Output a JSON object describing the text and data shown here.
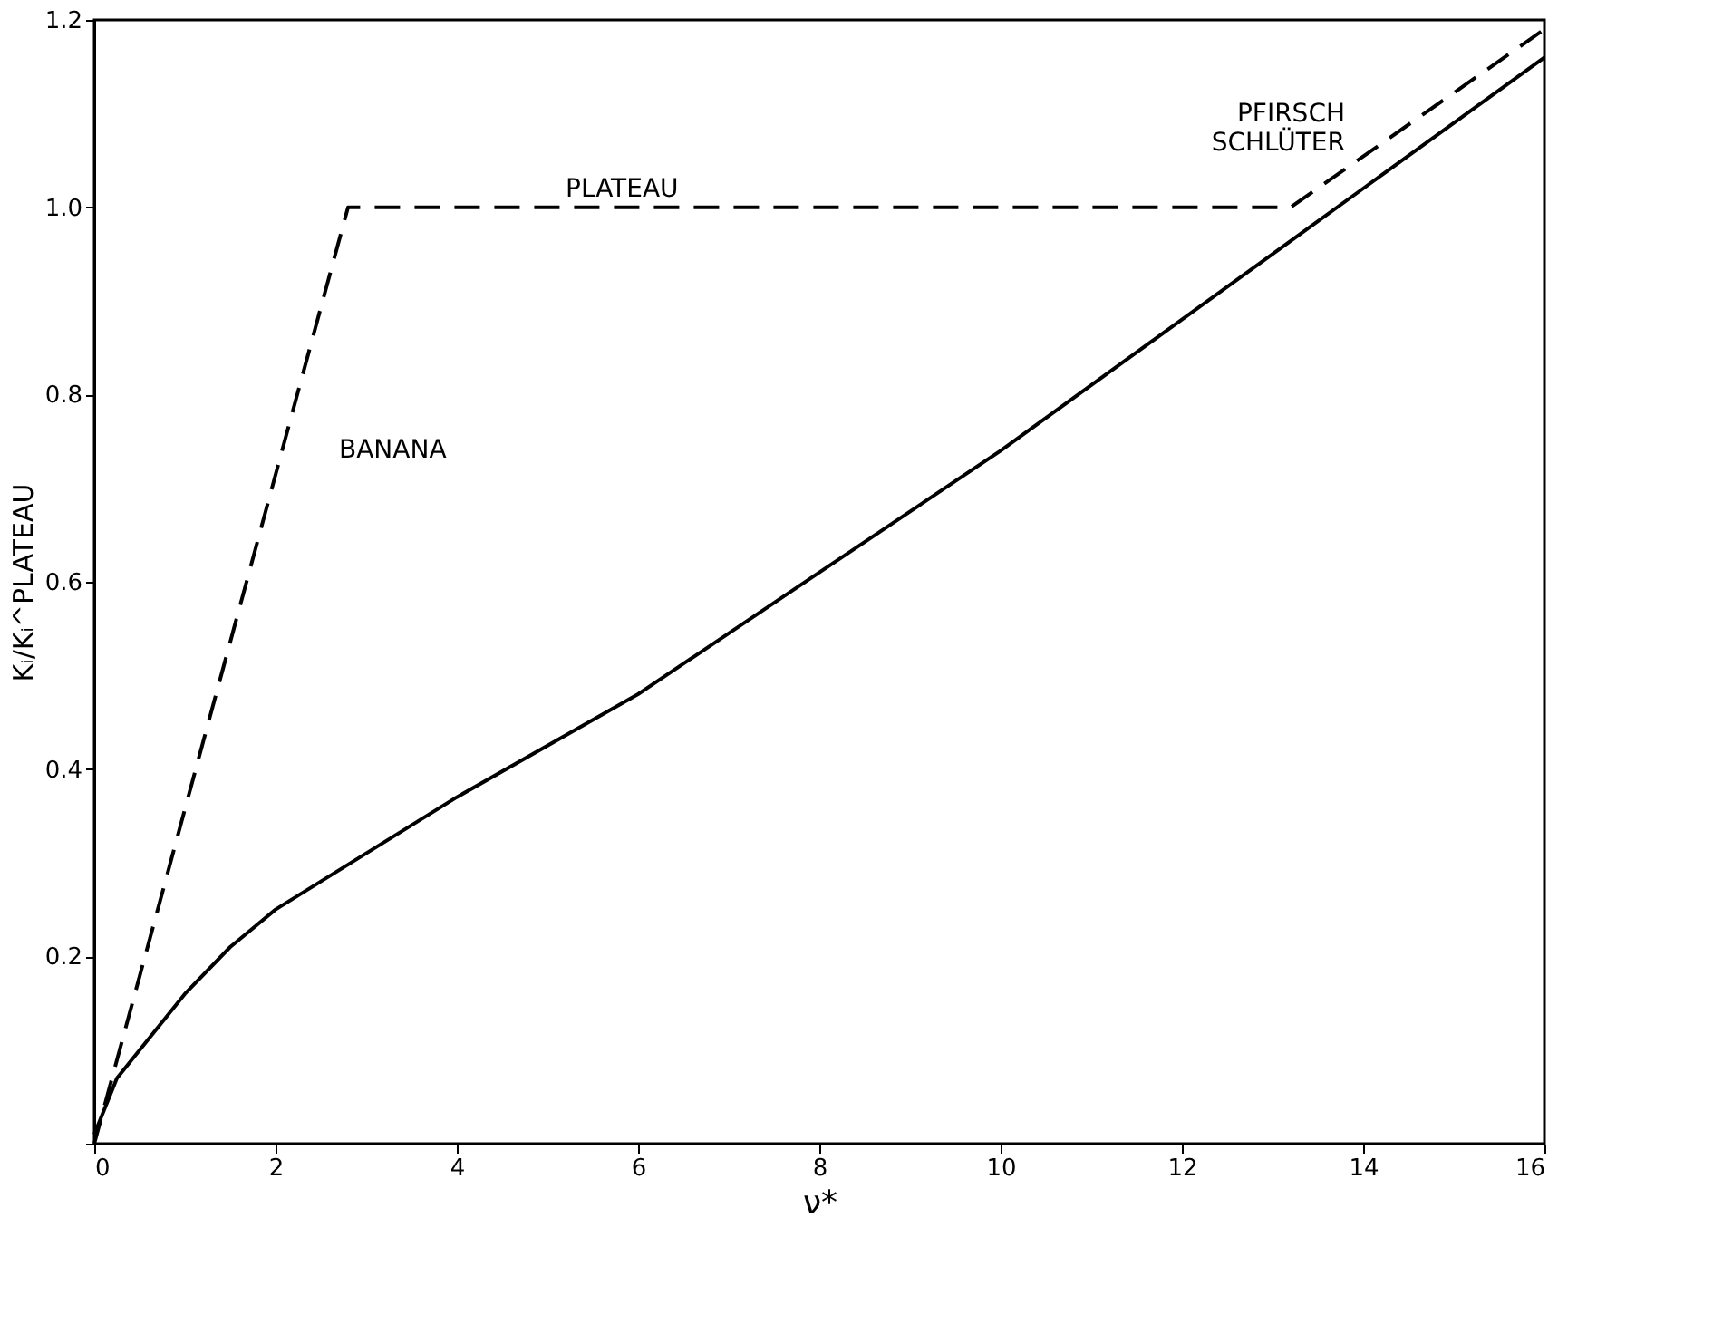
{
  "chart_data": {
    "type": "line",
    "xlabel": "ν*",
    "ylabel": "Kᵢ/Kᵢ^PLATEAU",
    "xlim": [
      0,
      16
    ],
    "xticks": [
      0,
      2,
      4,
      6,
      8,
      10,
      12,
      14,
      16
    ],
    "ylim": [
      0,
      1.2
    ],
    "yticks": [
      {
        "value": 0,
        "label": null
      },
      0.2,
      0.4,
      0.6,
      0.8,
      {
        "value": 1.0,
        "label": "1.0"
      },
      1.2
    ],
    "grid": false,
    "marker": "none",
    "series": [
      {
        "color": "#000000",
        "line_style": "solid",
        "x": [
          0,
          0.25,
          0.5,
          1,
          1.5,
          2,
          3,
          4,
          6,
          8,
          10,
          12,
          13,
          14,
          16
        ],
        "values": [
          0.01,
          0.07,
          0.1,
          0.16,
          0.21,
          0.25,
          0.31,
          0.37,
          0.48,
          0.61,
          0.74,
          0.88,
          0.95,
          1.02,
          1.16
        ]
      },
      {
        "color": "#000000",
        "line_style": "dashed",
        "x": [
          0,
          2.8,
          13.2,
          16
        ],
        "values": [
          0,
          1.0,
          1.0,
          1.19
        ]
      }
    ],
    "annotations": [
      {
        "text": "PLATEAU",
        "x": 4.6,
        "y": 1.0
      },
      {
        "text": "BANANA",
        "x": 2.1,
        "y": 0.74
      },
      {
        "text": "PFIRSCH SCHLÜTER",
        "x": 14.3,
        "y": 1.07
      }
    ]
  }
}
